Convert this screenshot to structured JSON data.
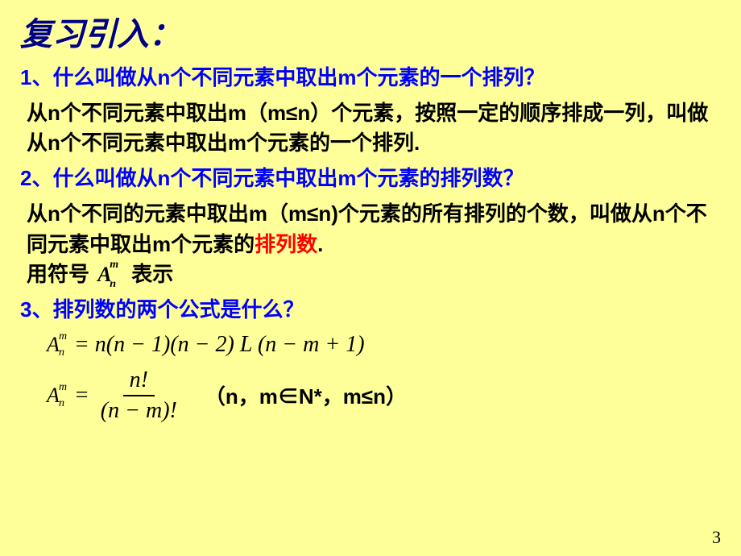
{
  "title": "复习引入：",
  "q1": {
    "question": "1、什么叫做从n个不同元素中取出m个元素的一个排列？",
    "answer": "从n个不同元素中取出m（m≤n）个元素，按照一定的顺序排成一列，叫做从n个不同元素中取出m个元素的一个排列."
  },
  "q2": {
    "question": "2、什么叫做从n个不同元素中取出m个元素的排列数？",
    "answer_p1": "从n个不同的元素中取出m（m≤n)个元素的所有排列的个数，叫做从n个不同元素中取出m个元素的",
    "answer_red": "排列数",
    "answer_p2": ".",
    "symbol_prefix": "用符号",
    "symbol_suffix": "表示"
  },
  "q3": {
    "question": "3、排列数的两个公式是什么？",
    "formula1": {
      "A": "A",
      "sub": "n",
      "sup": "m",
      "rhs": " = n(n − 1)(n − 2) L   (n − m + 1)"
    },
    "formula2": {
      "A": "A",
      "sub": "n",
      "sup": "m",
      "num": "n!",
      "den": "(n − m)!",
      "eq": " = "
    },
    "condition": "（n，m∈N*，m≤n）"
  },
  "page_number": "3",
  "styling": {
    "bg_color": "#ffff99",
    "title_color": "#000080",
    "question_color": "#0000ff",
    "answer_color": "#000000",
    "highlight_color": "#ff0000"
  }
}
